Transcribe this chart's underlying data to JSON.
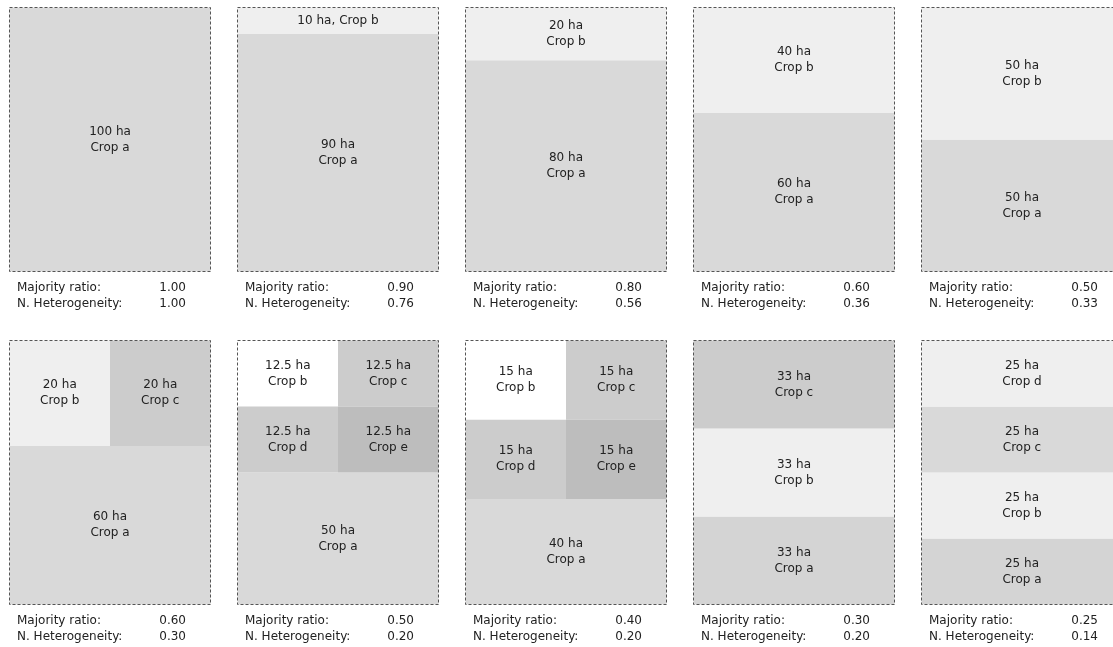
{
  "chart_data": [
    {
      "type": "other",
      "categories": [
        "Crop a"
      ],
      "values": [
        100
      ],
      "value_labels": [
        "100 ha"
      ],
      "colors": [
        "#d9d9d9"
      ],
      "annotations": [
        "Majority ratio:",
        "1.00",
        "N. Heterogeneity:",
        "1.00"
      ]
    },
    {
      "type": "other",
      "categories": [
        "Crop a",
        "Crop b"
      ],
      "values": [
        90,
        10
      ],
      "value_labels": [
        "90 ha",
        "10 ha,"
      ],
      "colors": [
        "#d9d9d9",
        "#efefef"
      ],
      "annotations": [
        "Majority ratio:",
        "0.90",
        "N. Heterogeneity:",
        "0.76"
      ]
    },
    {
      "type": "other",
      "categories": [
        "Crop a",
        "Crop b"
      ],
      "values": [
        80,
        20
      ],
      "value_labels": [
        "80 ha",
        "20 ha"
      ],
      "colors": [
        "#d9d9d9",
        "#efefef"
      ],
      "annotations": [
        "Majority ratio:",
        "0.80",
        "N. Heterogeneity:",
        "0.56"
      ]
    },
    {
      "type": "other",
      "categories": [
        "Crop a",
        "Crop b"
      ],
      "values": [
        60,
        40
      ],
      "value_labels": [
        "60 ha",
        "40 ha"
      ],
      "colors": [
        "#d9d9d9",
        "#efefef"
      ],
      "annotations": [
        "Majority ratio:",
        "0.60",
        "N. Heterogeneity:",
        "0.36"
      ]
    },
    {
      "type": "other",
      "categories": [
        "Crop a",
        "Crop b"
      ],
      "values": [
        50,
        50
      ],
      "value_labels": [
        "50 ha",
        "50 ha"
      ],
      "colors": [
        "#d9d9d9",
        "#efefef"
      ],
      "annotations": [
        "Majority ratio:",
        "0.50",
        "N. Heterogeneity:",
        "0.33"
      ]
    },
    {
      "type": "other",
      "categories": [
        "Crop a",
        "Crop b",
        "Crop c"
      ],
      "values": [
        60,
        20,
        20
      ],
      "value_labels": [
        "60 ha",
        "20 ha",
        "20 ha"
      ],
      "colors": [
        "#d9d9d9",
        "#efefef",
        "#cccccc"
      ],
      "annotations": [
        "Majority ratio:",
        "0.60",
        "N. Heterogeneity:",
        "0.30"
      ]
    },
    {
      "type": "other",
      "categories": [
        "Crop a",
        "Crop b",
        "Crop c",
        "Crop d",
        "Crop e"
      ],
      "values": [
        50,
        12.5,
        12.5,
        12.5,
        12.5
      ],
      "value_labels": [
        "50 ha",
        "12.5 ha",
        "12.5 ha",
        "12.5 ha",
        "12.5 ha"
      ],
      "colors": [
        "#d9d9d9",
        "#ffffff",
        "#cccccc",
        "#cccccc",
        "#bdbdbd"
      ],
      "annotations": [
        "Majority ratio:",
        "0.50",
        "N. Heterogeneity:",
        "0.20"
      ]
    },
    {
      "type": "other",
      "categories": [
        "Crop a",
        "Crop b",
        "Crop c",
        "Crop d",
        "Crop e"
      ],
      "values": [
        40,
        15,
        15,
        15,
        15
      ],
      "value_labels": [
        "40 ha",
        "15 ha",
        "15 ha",
        "15 ha",
        "15 ha"
      ],
      "colors": [
        "#d9d9d9",
        "#ffffff",
        "#cccccc",
        "#cccccc",
        "#bdbdbd"
      ],
      "annotations": [
        "Majority ratio:",
        "0.40",
        "N. Heterogeneity:",
        "0.20"
      ]
    },
    {
      "type": "other",
      "categories": [
        "Crop a",
        "Crop b",
        "Crop c"
      ],
      "values": [
        33,
        33,
        33
      ],
      "value_labels": [
        "33 ha",
        "33 ha",
        "33 ha"
      ],
      "colors": [
        "#d4d4d4",
        "#efefef",
        "#cccccc"
      ],
      "annotations": [
        "Majority ratio:",
        "0.30",
        "N. Heterogeneity:",
        "0.20"
      ]
    },
    {
      "type": "other",
      "categories": [
        "Crop a",
        "Crop b",
        "Crop c",
        "Crop d"
      ],
      "values": [
        25,
        25,
        25,
        25
      ],
      "value_labels": [
        "25 ha",
        "25 ha",
        "25 ha",
        "25 ha"
      ],
      "colors": [
        "#d4d4d4",
        "#efefef",
        "#d9d9d9",
        "#efefef"
      ],
      "annotations": [
        "Majority ratio:",
        "0.25",
        "N. Heterogeneity:",
        "0.14"
      ]
    }
  ]
}
